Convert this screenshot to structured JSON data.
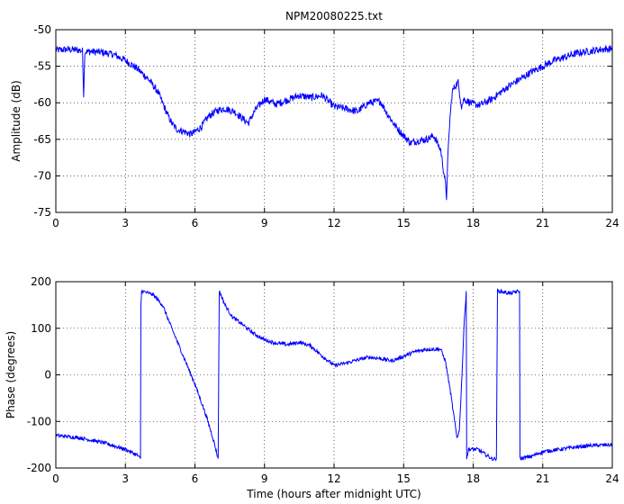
{
  "figure": {
    "title": "NPM20080225.txt",
    "background": "#ffffff",
    "line_color": "#0000ff",
    "grid_color": "#000000"
  },
  "chart_data": [
    {
      "type": "line",
      "title": "NPM20080225.txt",
      "xlabel": "",
      "ylabel": "Amplitude (dB)",
      "xlim": [
        0,
        24
      ],
      "ylim": [
        -75,
        -50
      ],
      "xticks": [
        0,
        3,
        6,
        9,
        12,
        15,
        18,
        21,
        24
      ],
      "yticks": [
        -75,
        -70,
        -65,
        -60,
        -55,
        -50
      ],
      "grid": "dotted",
      "noise": 0.5,
      "series": [
        {
          "color": "#0000ff",
          "points": [
            [
              0,
              -52.8
            ],
            [
              0.5,
              -52.7
            ],
            [
              1.0,
              -52.8
            ],
            [
              1.15,
              -52.9
            ],
            [
              1.2,
              -59.0
            ],
            [
              1.25,
              -53.0
            ],
            [
              1.5,
              -53.0
            ],
            [
              2.0,
              -53.1
            ],
            [
              2.5,
              -53.4
            ],
            [
              3.0,
              -54.2
            ],
            [
              3.5,
              -55.3
            ],
            [
              4.0,
              -56.8
            ],
            [
              4.4,
              -58.5
            ],
            [
              4.8,
              -61.5
            ],
            [
              5.0,
              -62.8
            ],
            [
              5.2,
              -63.6
            ],
            [
              5.5,
              -63.9
            ],
            [
              5.8,
              -64.3
            ],
            [
              6.0,
              -64.0
            ],
            [
              6.3,
              -63.2
            ],
            [
              6.6,
              -61.8
            ],
            [
              7.0,
              -61.0
            ],
            [
              7.3,
              -60.8
            ],
            [
              7.7,
              -61.2
            ],
            [
              8.0,
              -62.0
            ],
            [
              8.3,
              -62.8
            ],
            [
              8.6,
              -61.0
            ],
            [
              9.0,
              -59.5
            ],
            [
              9.5,
              -60.2
            ],
            [
              10.0,
              -59.6
            ],
            [
              10.5,
              -59.0
            ],
            [
              11.0,
              -59.3
            ],
            [
              11.5,
              -59.0
            ],
            [
              12.0,
              -60.5
            ],
            [
              12.5,
              -60.8
            ],
            [
              13.0,
              -61.2
            ],
            [
              13.5,
              -60.0
            ],
            [
              14.0,
              -59.8
            ],
            [
              14.3,
              -61.5
            ],
            [
              14.6,
              -63.0
            ],
            [
              15.0,
              -64.5
            ],
            [
              15.3,
              -65.5
            ],
            [
              15.6,
              -65.2
            ],
            [
              16.0,
              -65.0
            ],
            [
              16.3,
              -64.5
            ],
            [
              16.6,
              -66.5
            ],
            [
              16.8,
              -71.0
            ],
            [
              16.85,
              -73.0
            ],
            [
              16.9,
              -68.0
            ],
            [
              17.0,
              -62.0
            ],
            [
              17.1,
              -58.5
            ],
            [
              17.2,
              -57.8
            ],
            [
              17.35,
              -57.2
            ],
            [
              17.5,
              -60.5
            ],
            [
              17.6,
              -59.5
            ],
            [
              18.0,
              -60.2
            ],
            [
              18.3,
              -60.3
            ],
            [
              18.8,
              -59.5
            ],
            [
              19.5,
              -57.8
            ],
            [
              20.5,
              -55.8
            ],
            [
              21.5,
              -54.2
            ],
            [
              22.5,
              -53.2
            ],
            [
              23.5,
              -52.7
            ],
            [
              24.0,
              -52.6
            ]
          ]
        }
      ]
    },
    {
      "type": "line",
      "title": "",
      "xlabel": "Time (hours after midnight UTC)",
      "ylabel": "Phase (degrees)",
      "xlim": [
        0,
        24
      ],
      "ylim": [
        -200,
        200
      ],
      "xticks": [
        0,
        3,
        6,
        9,
        12,
        15,
        18,
        21,
        24
      ],
      "yticks": [
        -200,
        -100,
        0,
        100,
        200
      ],
      "grid": "dotted",
      "noise": 4,
      "series": [
        {
          "color": "#0000ff",
          "points": [
            [
              0,
              -130
            ],
            [
              1.0,
              -135
            ],
            [
              2.0,
              -145
            ],
            [
              3.0,
              -160
            ],
            [
              3.5,
              -172
            ],
            [
              3.65,
              -180
            ],
            [
              3.67,
              150
            ],
            [
              3.7,
              180
            ],
            [
              4.2,
              172
            ],
            [
              4.6,
              150
            ],
            [
              5.0,
              100
            ],
            [
              5.5,
              40
            ],
            [
              6.0,
              -20
            ],
            [
              6.5,
              -90
            ],
            [
              6.8,
              -140
            ],
            [
              7.0,
              -180
            ],
            [
              7.05,
              180
            ],
            [
              7.3,
              150
            ],
            [
              7.6,
              125
            ],
            [
              8.0,
              110
            ],
            [
              8.5,
              90
            ],
            [
              9.0,
              75
            ],
            [
              9.5,
              68
            ],
            [
              10.0,
              65
            ],
            [
              10.5,
              70
            ],
            [
              11.0,
              62
            ],
            [
              11.5,
              40
            ],
            [
              12.0,
              20
            ],
            [
              12.5,
              25
            ],
            [
              13.0,
              32
            ],
            [
              13.5,
              38
            ],
            [
              14.0,
              35
            ],
            [
              14.5,
              30
            ],
            [
              15.0,
              40
            ],
            [
              15.5,
              50
            ],
            [
              16.0,
              55
            ],
            [
              16.6,
              55
            ],
            [
              16.8,
              30
            ],
            [
              17.0,
              -30
            ],
            [
              17.2,
              -100
            ],
            [
              17.3,
              -135
            ],
            [
              17.4,
              -120
            ],
            [
              17.5,
              -20
            ],
            [
              17.6,
              100
            ],
            [
              17.7,
              180
            ],
            [
              17.72,
              -180
            ],
            [
              17.8,
              -160
            ],
            [
              18.2,
              -160
            ],
            [
              18.8,
              -180
            ],
            [
              19.0,
              -180
            ],
            [
              19.05,
              180
            ],
            [
              19.3,
              178
            ],
            [
              19.6,
              175
            ],
            [
              20.0,
              180
            ],
            [
              20.02,
              -180
            ],
            [
              20.5,
              -175
            ],
            [
              21.0,
              -165
            ],
            [
              22.0,
              -158
            ],
            [
              23.0,
              -152
            ],
            [
              24.0,
              -150
            ]
          ]
        }
      ]
    }
  ]
}
